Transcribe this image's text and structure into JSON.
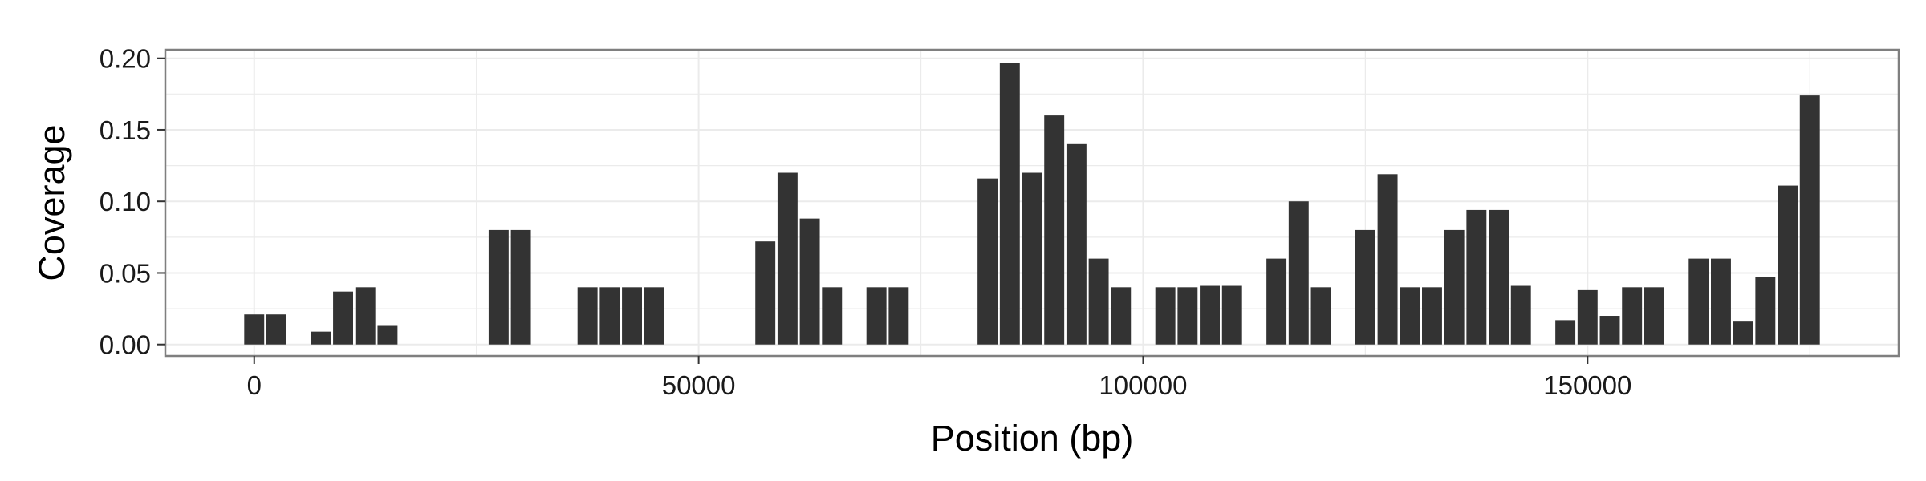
{
  "chart_data": {
    "type": "bar",
    "title": "",
    "xlabel": "Position (bp)",
    "ylabel": "Coverage",
    "xlim": [
      -10000,
      185000
    ],
    "ylim": [
      -0.008,
      0.206
    ],
    "grid": true,
    "legend": "none",
    "bar_color": "#333333",
    "panel_border_color": "#7f7f7f",
    "grid_color": "#ebebeb",
    "bin_width": 2500,
    "x_ticks": [
      {
        "value": 0,
        "label": "0"
      },
      {
        "value": 50000,
        "label": "50000"
      },
      {
        "value": 100000,
        "label": "100000"
      },
      {
        "value": 150000,
        "label": "150000"
      }
    ],
    "y_ticks": [
      {
        "value": 0.0,
        "label": "0.00"
      },
      {
        "value": 0.05,
        "label": "0.05"
      },
      {
        "value": 0.1,
        "label": "0.10"
      },
      {
        "value": 0.15,
        "label": "0.15"
      },
      {
        "value": 0.2,
        "label": "0.20"
      }
    ],
    "x": [
      0,
      2500,
      7500,
      10000,
      12500,
      15000,
      27500,
      30000,
      37500,
      40000,
      42500,
      45000,
      57500,
      60000,
      62500,
      65000,
      70000,
      72500,
      82500,
      85000,
      87500,
      90000,
      92500,
      95000,
      97500,
      102500,
      105000,
      107500,
      110000,
      115000,
      117500,
      120000,
      125000,
      127500,
      130000,
      132500,
      135000,
      137500,
      140000,
      142500,
      147500,
      150000,
      152500,
      155000,
      157500,
      162500,
      165000,
      167500,
      170000,
      172500,
      175000
    ],
    "values": [
      0.021,
      0.021,
      0.009,
      0.037,
      0.04,
      0.013,
      0.08,
      0.08,
      0.04,
      0.04,
      0.04,
      0.04,
      0.072,
      0.12,
      0.088,
      0.04,
      0.04,
      0.04,
      0.116,
      0.197,
      0.12,
      0.16,
      0.14,
      0.06,
      0.04,
      0.04,
      0.04,
      0.041,
      0.041,
      0.06,
      0.1,
      0.04,
      0.08,
      0.119,
      0.04,
      0.04,
      0.08,
      0.094,
      0.094,
      0.041,
      0.017,
      0.038,
      0.02,
      0.04,
      0.04,
      0.06,
      0.06,
      0.016,
      0.047,
      0.111,
      0.174
    ]
  }
}
